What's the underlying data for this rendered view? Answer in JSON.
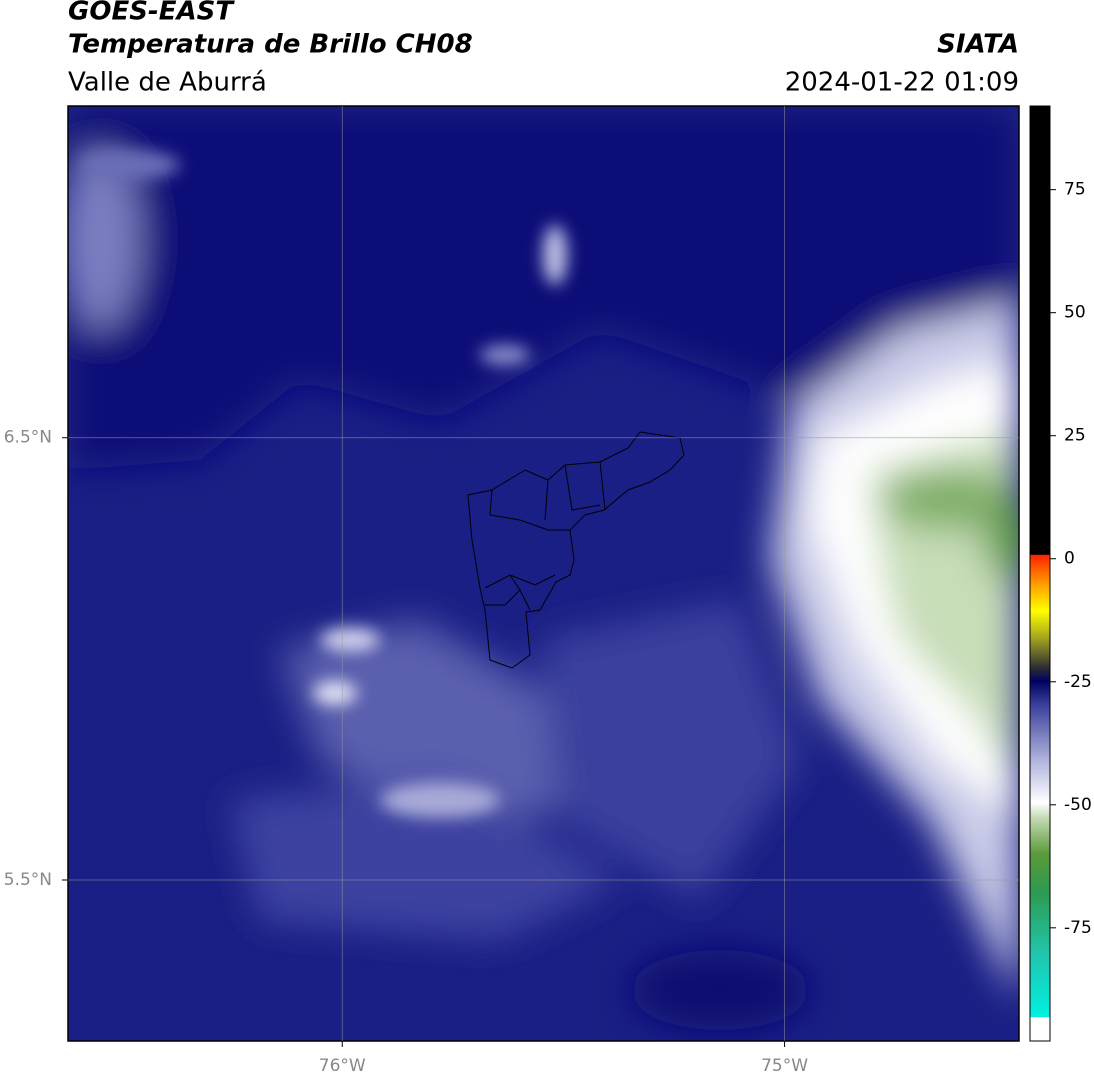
{
  "header": {
    "title": "GOES-EAST",
    "subtitle": "Temperatura de Brillo CH08",
    "region": "Valle de Aburrá",
    "source": "SIATA",
    "timestamp": "2024-01-22 01:09"
  },
  "map": {
    "xlim": [
      -76.62,
      -74.47
    ],
    "ylim": [
      5.136,
      7.25
    ],
    "lon_ticks": [
      {
        "value": -76,
        "label": "76°W"
      },
      {
        "value": -75,
        "label": "75°W"
      }
    ],
    "lat_ticks": [
      {
        "value": 6.5,
        "label": "6.5°N"
      },
      {
        "value": 5.5,
        "label": "5.5°N"
      }
    ]
  },
  "colorbar": {
    "lim": [
      -98,
      92
    ],
    "ticks": [
      75,
      50,
      25,
      0,
      -25,
      -50,
      -75
    ]
  }
}
